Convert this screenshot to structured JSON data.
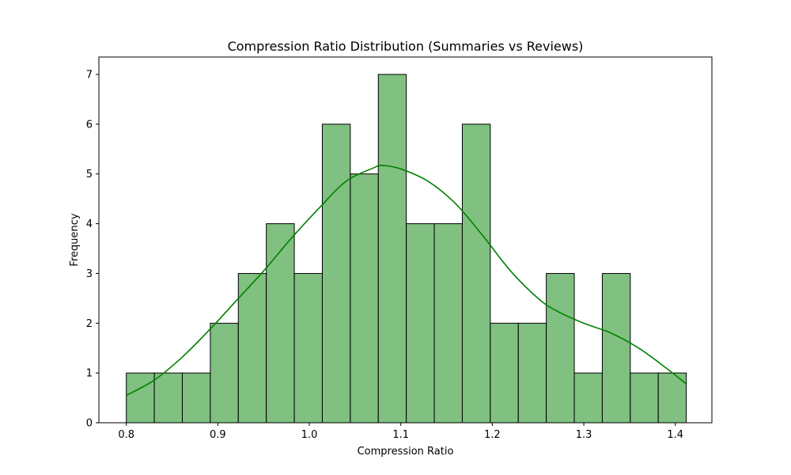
{
  "chart_data": {
    "type": "bar",
    "title": "Compression Ratio Distribution (Summaries vs Reviews)",
    "xlabel": "Compression Ratio",
    "ylabel": "Frequency",
    "xlim": [
      0.77,
      1.44
    ],
    "ylim": [
      0,
      7.35
    ],
    "x_ticks": [
      0.8,
      0.9,
      1.0,
      1.1,
      1.2,
      1.3,
      1.4
    ],
    "x_tick_labels": [
      "0.8",
      "0.9",
      "1.0",
      "1.1",
      "1.2",
      "1.3",
      "1.4"
    ],
    "y_ticks": [
      0,
      1,
      2,
      3,
      4,
      5,
      6,
      7
    ],
    "y_tick_labels": [
      "0",
      "1",
      "2",
      "3",
      "4",
      "5",
      "6",
      "7"
    ],
    "bin_edges": [
      0.8,
      0.8306,
      0.8612,
      0.8918,
      0.9224,
      0.953,
      0.9836,
      1.0142,
      1.0448,
      1.0754,
      1.106,
      1.1366,
      1.1672,
      1.1978,
      1.2284,
      1.259,
      1.2896,
      1.3202,
      1.3508,
      1.3814,
      1.412
    ],
    "values": [
      1,
      1,
      1,
      2,
      3,
      4,
      3,
      6,
      5,
      7,
      4,
      4,
      6,
      2,
      2,
      3,
      1,
      3,
      1,
      1
    ],
    "kde": {
      "x": [
        0.8,
        0.83,
        0.86,
        0.89,
        0.92,
        0.95,
        0.98,
        1.01,
        1.04,
        1.07,
        1.08,
        1.1,
        1.13,
        1.16,
        1.19,
        1.22,
        1.25,
        1.27,
        1.3,
        1.33,
        1.36,
        1.39,
        1.412
      ],
      "y": [
        0.55,
        0.85,
        1.3,
        1.85,
        2.45,
        3.05,
        3.7,
        4.3,
        4.85,
        5.12,
        5.17,
        5.1,
        4.85,
        4.4,
        3.75,
        3.05,
        2.5,
        2.25,
        2.0,
        1.8,
        1.5,
        1.1,
        0.78
      ]
    },
    "grid": false,
    "colors": {
      "bar_fill": "#80c080",
      "bar_edge": "#000000",
      "kde_line": "#008000"
    }
  }
}
